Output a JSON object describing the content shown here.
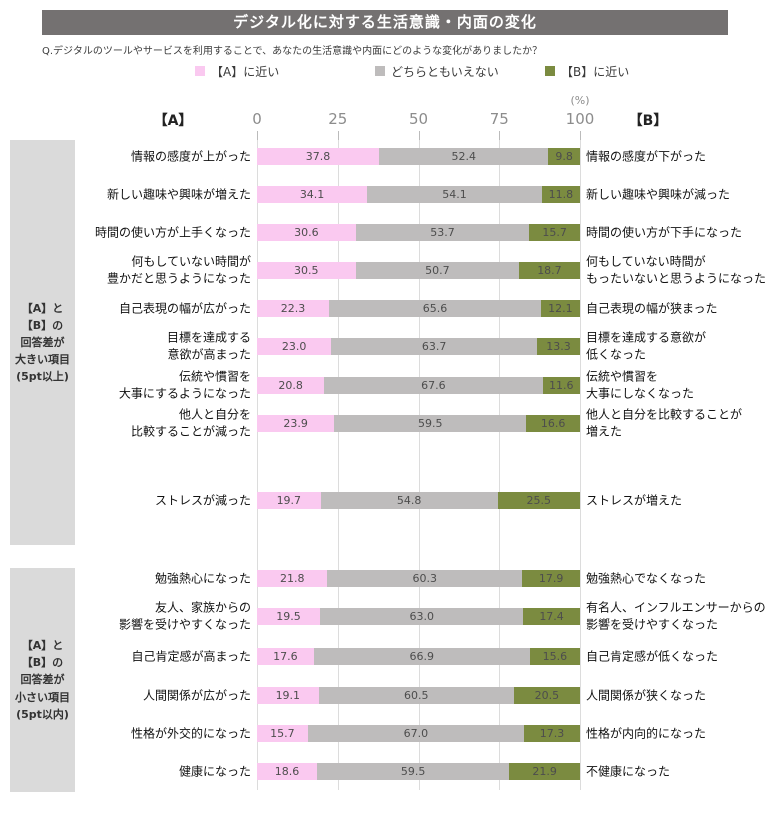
{
  "title": "デジタル化に対する生活意識・内面の変化",
  "question": "Q.デジタルのツールやサービスを利用することで、あなたの生活意識や内面にどのような変化がありましたか？",
  "colors": {
    "title_bar_bg": "#747171",
    "a_segment": "#FAC9F0",
    "neutral_segment": "#BEBCBC",
    "b_segment": "#7B8B40",
    "group_box_bg": "#DADADA",
    "axis_text": "#8C8C8C",
    "gridline": "#DCDCDC"
  },
  "legend": {
    "items": [
      {
        "label": "【A】に近い",
        "color": "#FAC9F0"
      },
      {
        "label": "どちらともいえない",
        "color": "#BEBCBC"
      },
      {
        "label": "【B】に近い",
        "color": "#7B8B40"
      }
    ]
  },
  "axis": {
    "a_label": "【A】",
    "b_label": "【B】",
    "percent_label": "(%)",
    "ticks": [
      "0",
      "25",
      "50",
      "75",
      "100"
    ],
    "range": [
      0,
      100
    ]
  },
  "groups": [
    {
      "label": "【A】と【B】の\n回答差が\n大きい項目\n(5pt以上)"
    },
    {
      "label": "【A】と【B】の\n回答差が\n小さい項目\n(5pt以内)"
    }
  ],
  "chart_data": {
    "type": "bar",
    "stacked": true,
    "orientation": "horizontal",
    "unit": "%",
    "title": "デジタル化に対する生活意識・内面の変化",
    "xlim": [
      0,
      100
    ],
    "grid": true,
    "legend_position": "top",
    "series_names": [
      "【A】に近い",
      "どちらともいえない",
      "【B】に近い"
    ],
    "rows": [
      {
        "group": 0,
        "left": "情報の感度が上がった",
        "right": "情報の感度が下がった",
        "values": [
          37.8,
          52.4,
          9.8
        ]
      },
      {
        "group": 0,
        "left": "新しい趣味や興味が増えた",
        "right": "新しい趣味や興味が減った",
        "values": [
          34.1,
          54.1,
          11.8
        ]
      },
      {
        "group": 0,
        "left": "時間の使い方が上手くなった",
        "right": "時間の使い方が下手になった",
        "values": [
          30.6,
          53.7,
          15.7
        ]
      },
      {
        "group": 0,
        "left": "何もしていない時間が\n豊かだと思うようになった",
        "right": "何もしていない時間が\nもったいないと思うようになった",
        "values": [
          30.5,
          50.7,
          18.7
        ]
      },
      {
        "group": 0,
        "left": "自己表現の幅が広がった",
        "right": "自己表現の幅が狭まった",
        "values": [
          22.3,
          65.6,
          12.1
        ]
      },
      {
        "group": 0,
        "left": "目標を達成する\n意欲が高まった",
        "right": "目標を達成する意欲が\n低くなった",
        "values": [
          23.0,
          63.7,
          13.3
        ]
      },
      {
        "group": 0,
        "left": "伝統や慣習を\n大事にするようになった",
        "right": "伝統や慣習を\n大事にしなくなった",
        "values": [
          20.8,
          67.6,
          11.6
        ]
      },
      {
        "group": 0,
        "left": "他人と自分を\n比較することが減った",
        "right": "他人と自分を比較することが\n増えた",
        "values": [
          23.9,
          59.5,
          16.6
        ]
      },
      {
        "group": 0,
        "left": "ストレスが減った",
        "right": "ストレスが増えた",
        "values": [
          19.7,
          54.8,
          25.5
        ]
      },
      {
        "group": 1,
        "left": "勉強熱心になった",
        "right": "勉強熱心でなくなった",
        "values": [
          21.8,
          60.3,
          17.9
        ]
      },
      {
        "group": 1,
        "left": "友人、家族からの\n影響を受けやすくなった",
        "right": "有名人、インフルエンサーからの\n影響を受けやすくなった",
        "values": [
          19.5,
          63.0,
          17.4
        ]
      },
      {
        "group": 1,
        "left": "自己肯定感が高まった",
        "right": "自己肯定感が低くなった",
        "values": [
          17.6,
          66.9,
          15.6
        ]
      },
      {
        "group": 1,
        "left": "人間関係が広がった",
        "right": "人間関係が狭くなった",
        "values": [
          19.1,
          60.5,
          20.5
        ]
      },
      {
        "group": 1,
        "left": "性格が外交的になった",
        "right": "性格が内向的になった",
        "values": [
          15.7,
          67.0,
          17.3
        ]
      },
      {
        "group": 1,
        "left": "健康になった",
        "right": "不健康になった",
        "values": [
          18.6,
          59.5,
          21.9
        ]
      }
    ]
  }
}
